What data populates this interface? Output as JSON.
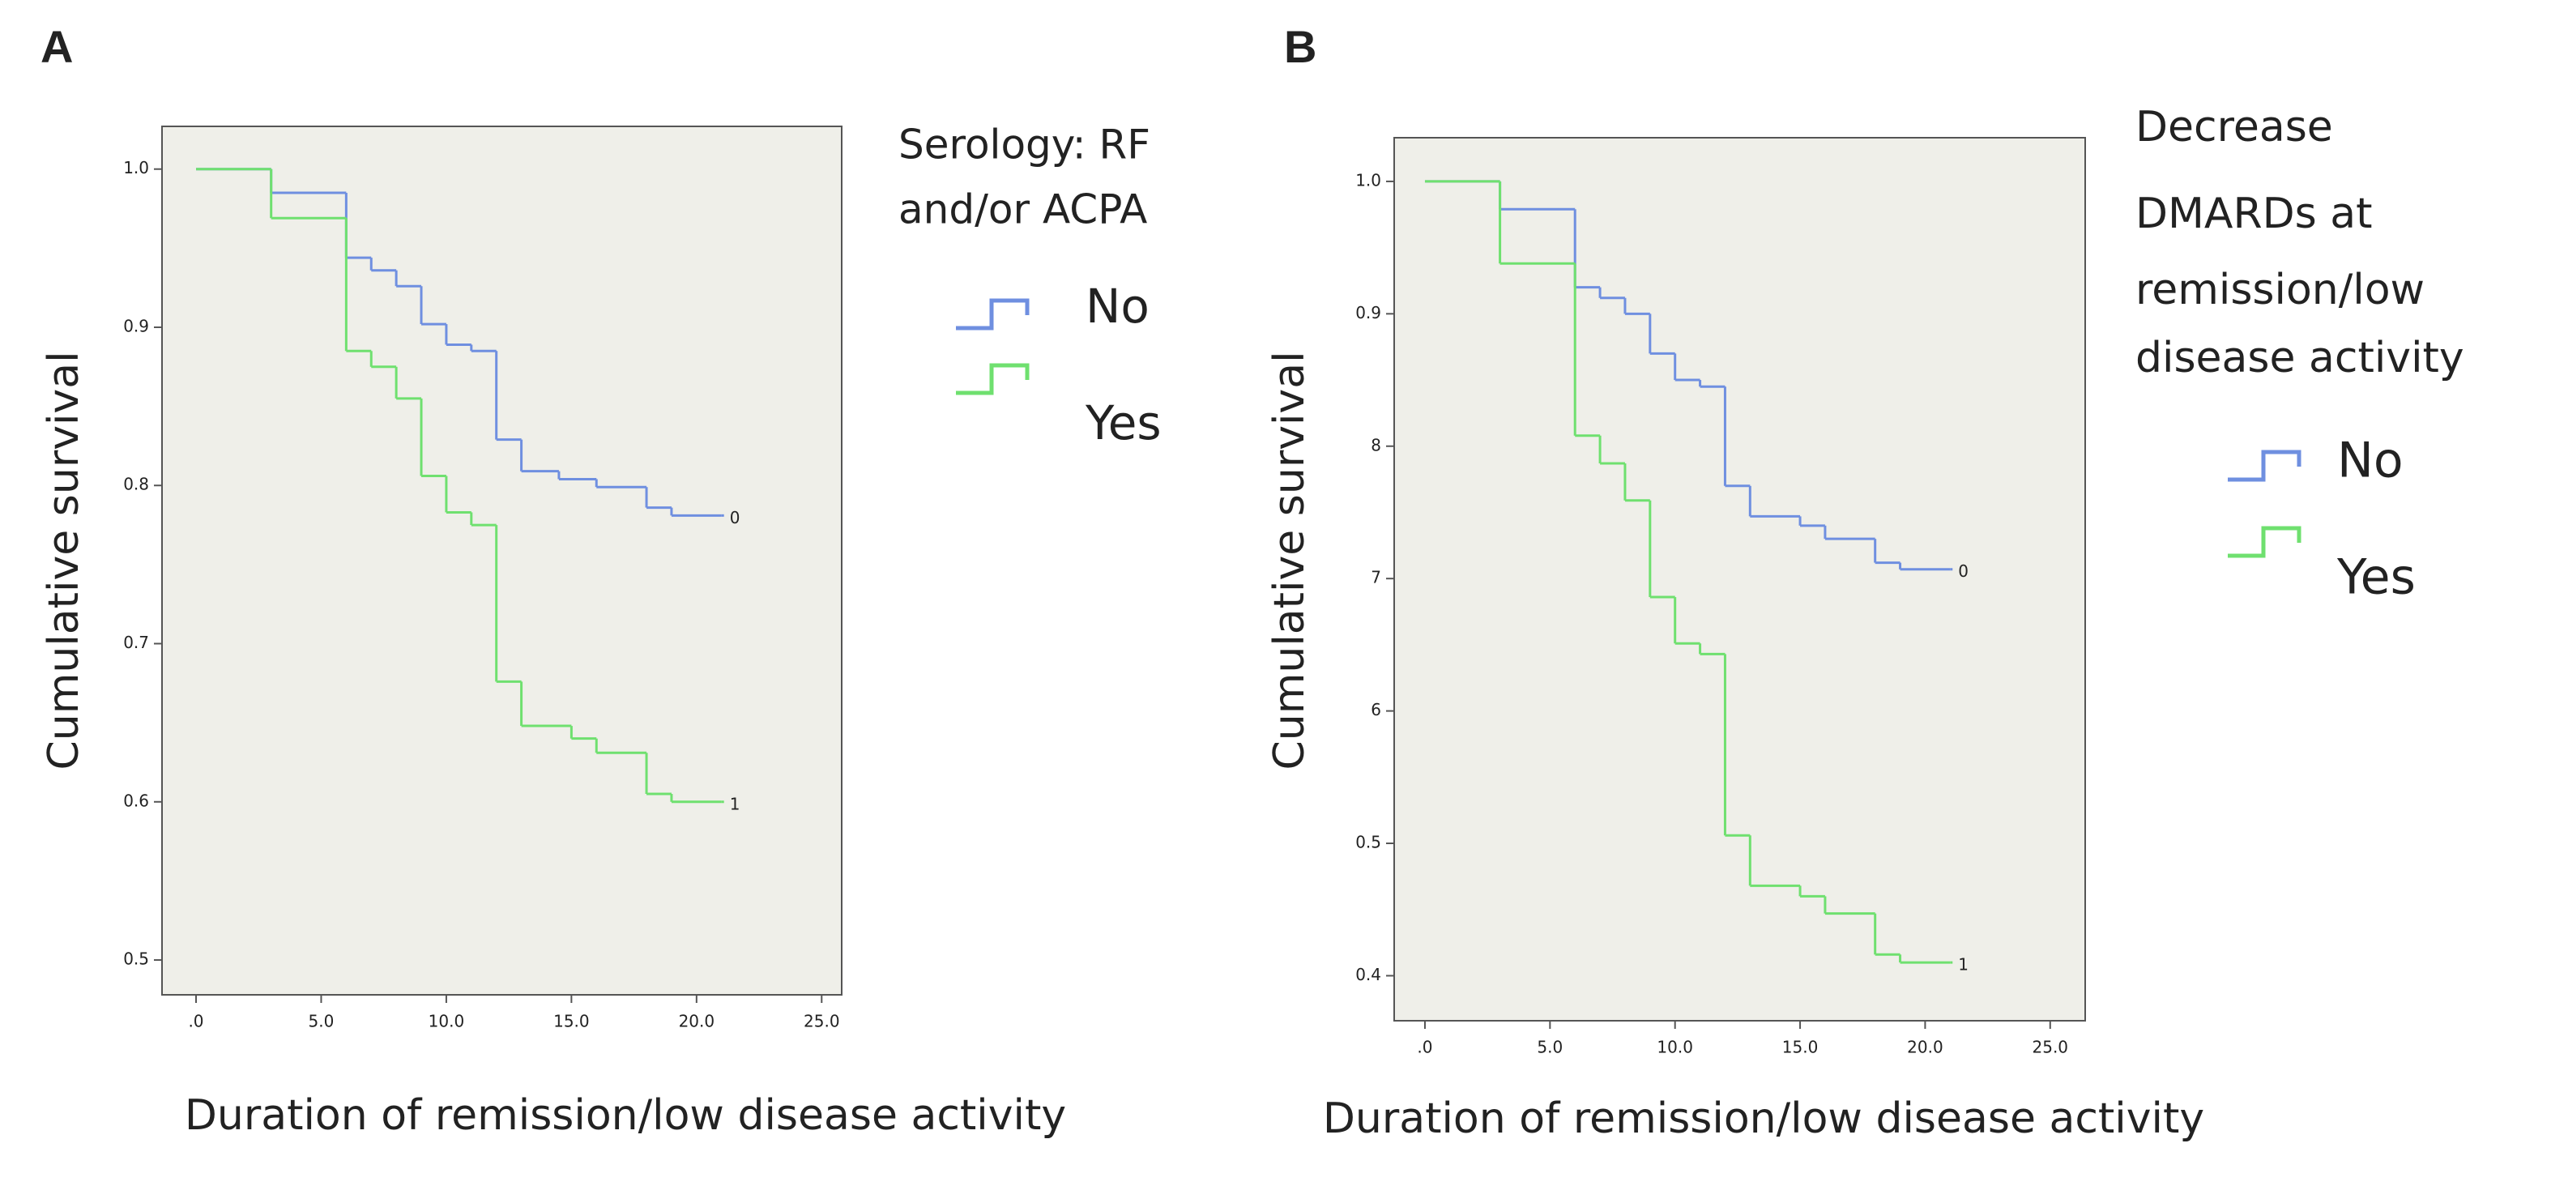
{
  "chart_data": [
    {
      "type": "step",
      "panel_label": "A",
      "x_label": "Duration of remission/low disease activity",
      "y_label": "Cumulative survival",
      "legend_title": [
        "Serology: RF",
        "and/or ACPA"
      ],
      "xlim": [
        -1.36,
        25.8
      ],
      "ylim": [
        0.478,
        1.027
      ],
      "xticks": [
        {
          "value": 0,
          "label": ".0"
        },
        {
          "value": 5,
          "label": "5.0"
        },
        {
          "value": 10,
          "label": "10.0"
        },
        {
          "value": 15,
          "label": "15.0"
        },
        {
          "value": 20,
          "label": "20.0"
        },
        {
          "value": 25,
          "label": "25.0"
        }
      ],
      "yticks": [
        {
          "value": 1,
          "label": "1.0"
        },
        0.9,
        0.8,
        0.7,
        0.6,
        0.5
      ],
      "series": [
        {
          "name": "No",
          "color": "#6f8fe0",
          "end_label": "0",
          "x": [
            0,
            3,
            6,
            7,
            8,
            9,
            10,
            11,
            12,
            13,
            14.5,
            16,
            18,
            19,
            21
          ],
          "values": [
            1,
            0.985,
            0.944,
            0.936,
            0.926,
            0.902,
            0.889,
            0.885,
            0.829,
            0.809,
            0.804,
            0.799,
            0.786,
            0.781,
            0.781
          ]
        },
        {
          "name": "Yes",
          "color": "#6fe06f",
          "end_label": "1",
          "x": [
            0,
            3,
            6,
            7,
            8,
            9,
            10,
            11,
            12,
            13,
            15,
            16,
            18,
            19,
            21
          ],
          "values": [
            1,
            0.969,
            0.885,
            0.875,
            0.855,
            0.806,
            0.783,
            0.775,
            0.676,
            0.648,
            0.64,
            0.631,
            0.605,
            0.6,
            0.6
          ]
        }
      ]
    },
    {
      "type": "step",
      "panel_label": "B",
      "x_label": "Duration of remission/low disease activity",
      "y_label": "Cumulative survival",
      "legend_title": [
        "Decrease",
        "DMARDs at",
        "remission/low",
        "disease activity"
      ],
      "xlim": [
        -1.23,
        26.4
      ],
      "ylim": [
        0.366,
        1.033
      ],
      "xticks": [
        {
          "value": 0,
          "label": ".0"
        },
        {
          "value": 5,
          "label": "5.0"
        },
        {
          "value": 10,
          "label": "10.0"
        },
        {
          "value": 15,
          "label": "15.0"
        },
        {
          "value": 20,
          "label": "20.0"
        },
        {
          "value": 25,
          "label": "25.0"
        }
      ],
      "yticks": [
        {
          "value": 1,
          "label": "1.0"
        },
        0.9,
        {
          "value": 0.8,
          "label": "8"
        },
        {
          "value": 0.7,
          "label": "7"
        },
        {
          "value": 0.6,
          "label": "6"
        },
        0.5,
        0.4
      ],
      "series": [
        {
          "name": "No",
          "color": "#6f8fe0",
          "end_label": "0",
          "x": [
            0,
            3,
            6,
            7,
            8,
            9,
            10,
            11,
            12,
            13,
            15,
            16,
            18,
            19,
            21
          ],
          "values": [
            1,
            0.979,
            0.92,
            0.912,
            0.9,
            0.87,
            0.85,
            0.845,
            0.77,
            0.747,
            0.74,
            0.73,
            0.712,
            0.707,
            0.707
          ]
        },
        {
          "name": "Yes",
          "color": "#6fe06f",
          "end_label": "1",
          "x": [
            0,
            3,
            6,
            7,
            8,
            9,
            10,
            11,
            12,
            13,
            15,
            16,
            18,
            19,
            21
          ],
          "values": [
            1,
            0.938,
            0.808,
            0.787,
            0.759,
            0.686,
            0.651,
            0.643,
            0.506,
            0.468,
            0.46,
            0.447,
            0.416,
            0.41,
            0.41
          ]
        }
      ]
    }
  ]
}
